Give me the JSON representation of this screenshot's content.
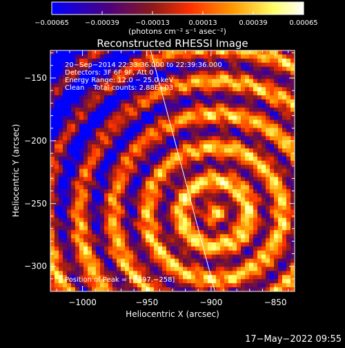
{
  "chart_data": {
    "type": "heatmap",
    "title": "Reconstructed RHESSI Image",
    "xlabel": "Heliocentric X (arcsec)",
    "ylabel": "Heliocentric Y (arcsec)",
    "xlim": [
      -1025,
      -835
    ],
    "ylim": [
      -320,
      -128
    ],
    "x_ticks": [
      -1000,
      -950,
      -900,
      -850
    ],
    "y_ticks": [
      -300,
      -250,
      -200,
      -150
    ],
    "x_tick_labels": [
      "−1000",
      "−950",
      "−900",
      "−850"
    ],
    "y_tick_labels": [
      "−300",
      "−250",
      "−200",
      "−150"
    ],
    "colorbar": {
      "range": [
        -0.00065,
        0.00065
      ],
      "ticks": [
        -0.00065,
        -0.00039,
        -0.00013,
        0.00013,
        0.00039,
        0.00065
      ],
      "tick_labels": [
        "−0.00065",
        "−0.00039",
        "−0.00013",
        "0.00013",
        "0.00039",
        "0.00065"
      ],
      "unit_label": "(photons cm⁻² s⁻¹ asec⁻²)",
      "colors": [
        "#0000ff",
        "#4b0082",
        "#8b1a1a",
        "#ff3000",
        "#ff9900",
        "#ffff66",
        "#ffffff"
      ]
    },
    "annotations": {
      "time_range": "20−Sep−2014 22:33:36.000 to 22:39:36.000",
      "detectors": "Detectors: 3F 6F 9F, Att 0",
      "energy_range": "Energy Range: 12.0 − 25.0 keV",
      "clean_counts": "Clean    Total counts: 2.88E+03",
      "peak": "Position of Peak = [−897,−258]"
    },
    "peak_position": [
      -897,
      -258
    ],
    "limb_line": [
      [
        -947,
        -128
      ],
      [
        -897,
        -320
      ]
    ]
  },
  "timestamp": "17−May−2022 09:55"
}
